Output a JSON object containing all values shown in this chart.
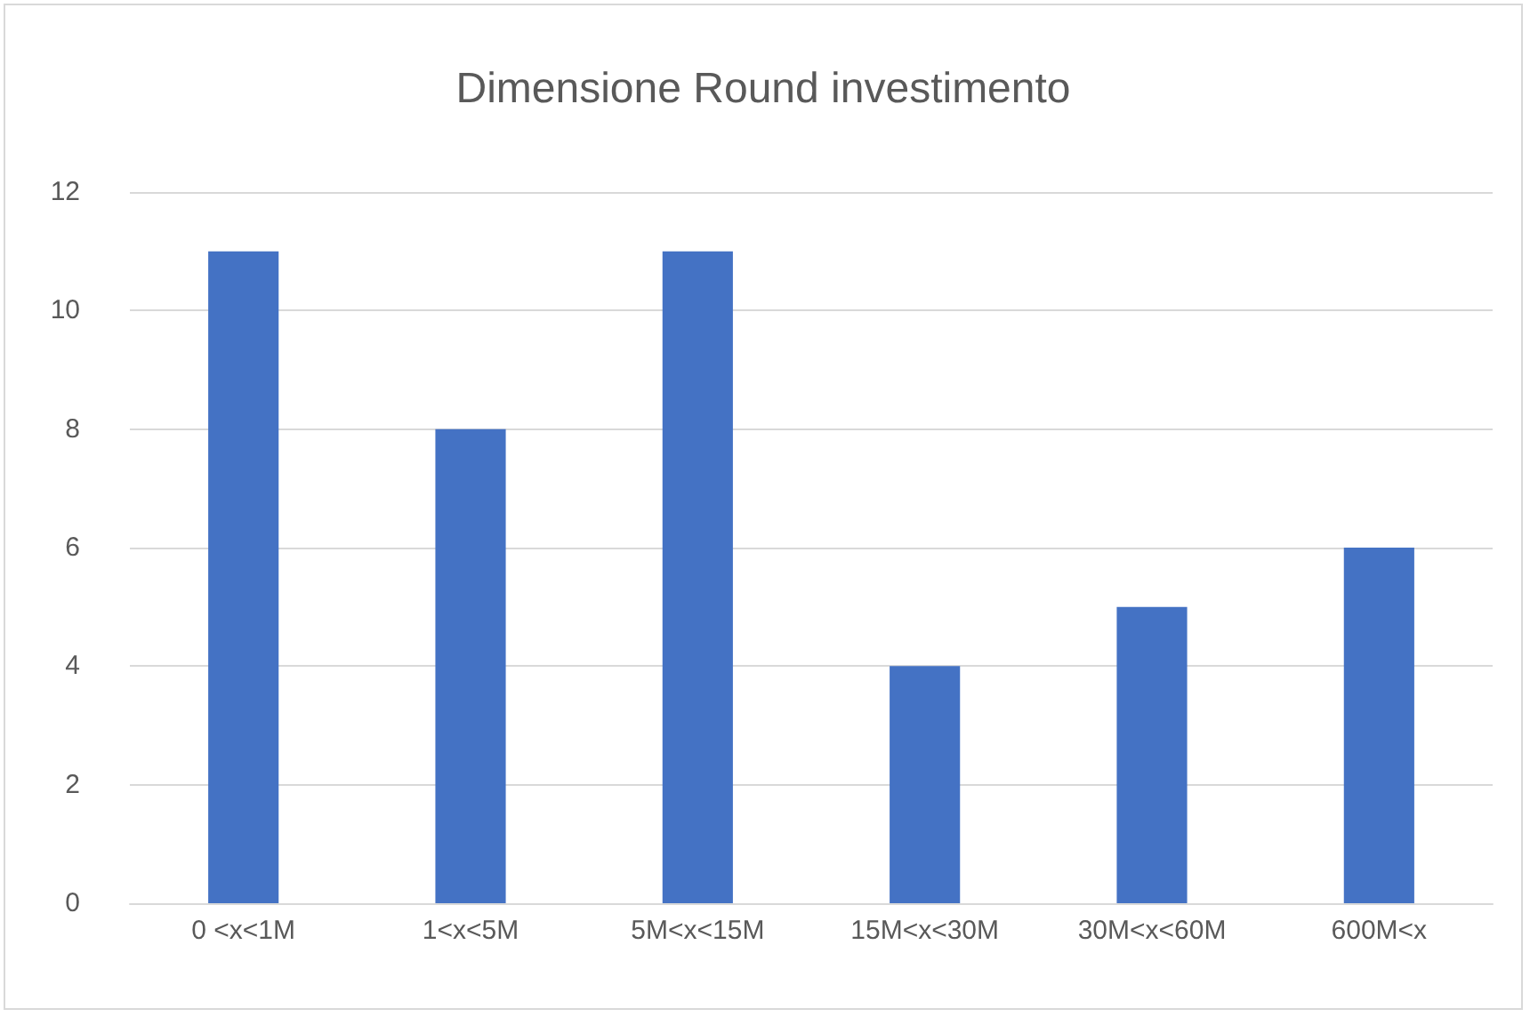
{
  "chart_data": {
    "type": "bar",
    "title": "Dimensione Round investimento",
    "categories": [
      "0 <x<1M",
      "1<x<5M",
      "5M<x<15M",
      "15M<x<30M",
      "30M<x<60M",
      "600M<x"
    ],
    "values": [
      11,
      8,
      11,
      4,
      5,
      6
    ],
    "color": "#4472c4",
    "ylim": [
      0,
      12
    ],
    "yticks": [
      0,
      2,
      4,
      6,
      8,
      10,
      12
    ],
    "grid": "y"
  }
}
